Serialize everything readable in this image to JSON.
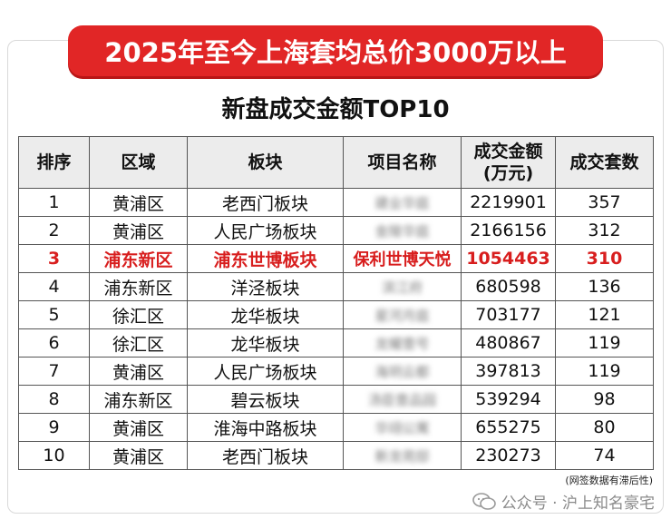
{
  "banner": {
    "title": "2025年至今上海套均总价3000万以上"
  },
  "subtitle": "新盘成交金额TOP10",
  "table": {
    "headers": [
      "排序",
      "区域",
      "板块",
      "项目名称",
      "成交金额\n(万元)",
      "成交套数"
    ],
    "rows": [
      {
        "rank": "1",
        "district": "黄浦区",
        "block": "老西门板块",
        "project": "建业华庭",
        "amount": "2219901",
        "units": "357"
      },
      {
        "rank": "2",
        "district": "黄浦区",
        "block": "人民广场板块",
        "project": "金陵华庭",
        "amount": "2166156",
        "units": "312"
      },
      {
        "rank": "3",
        "district": "浦东新区",
        "block": "浦东世博板块",
        "project": "保利世博天悦",
        "amount": "1054463",
        "units": "310"
      },
      {
        "rank": "4",
        "district": "浦东新区",
        "block": "洋泾板块",
        "project": "滨江府",
        "amount": "680598",
        "units": "136"
      },
      {
        "rank": "5",
        "district": "徐汇区",
        "block": "龙华板块",
        "project": "星河月庭",
        "amount": "703177",
        "units": "121"
      },
      {
        "rank": "6",
        "district": "徐汇区",
        "block": "龙华板块",
        "project": "龙耀壹号",
        "amount": "480867",
        "units": "119"
      },
      {
        "rank": "7",
        "district": "黄浦区",
        "block": "人民广场板块",
        "project": "海玥云都",
        "amount": "397813",
        "units": "119"
      },
      {
        "rank": "8",
        "district": "浦东新区",
        "block": "碧云板块",
        "project": "汤臣壹品园",
        "amount": "539294",
        "units": "98"
      },
      {
        "rank": "9",
        "district": "黄浦区",
        "block": "淮海中路板块",
        "project": "华翊公寓",
        "amount": "655275",
        "units": "80"
      },
      {
        "rank": "10",
        "district": "黄浦区",
        "block": "老西门板块",
        "project": "新龙苑邸",
        "amount": "230273",
        "units": "74"
      }
    ]
  },
  "note": "(网签数据有滞后性)",
  "watermark": {
    "icon": "wechat-icon",
    "text": "公众号 · 沪上知名豪宅"
  },
  "colors": {
    "accent": "#e12626",
    "highlight": "#d81e1e",
    "header_bg": "#ececec"
  }
}
